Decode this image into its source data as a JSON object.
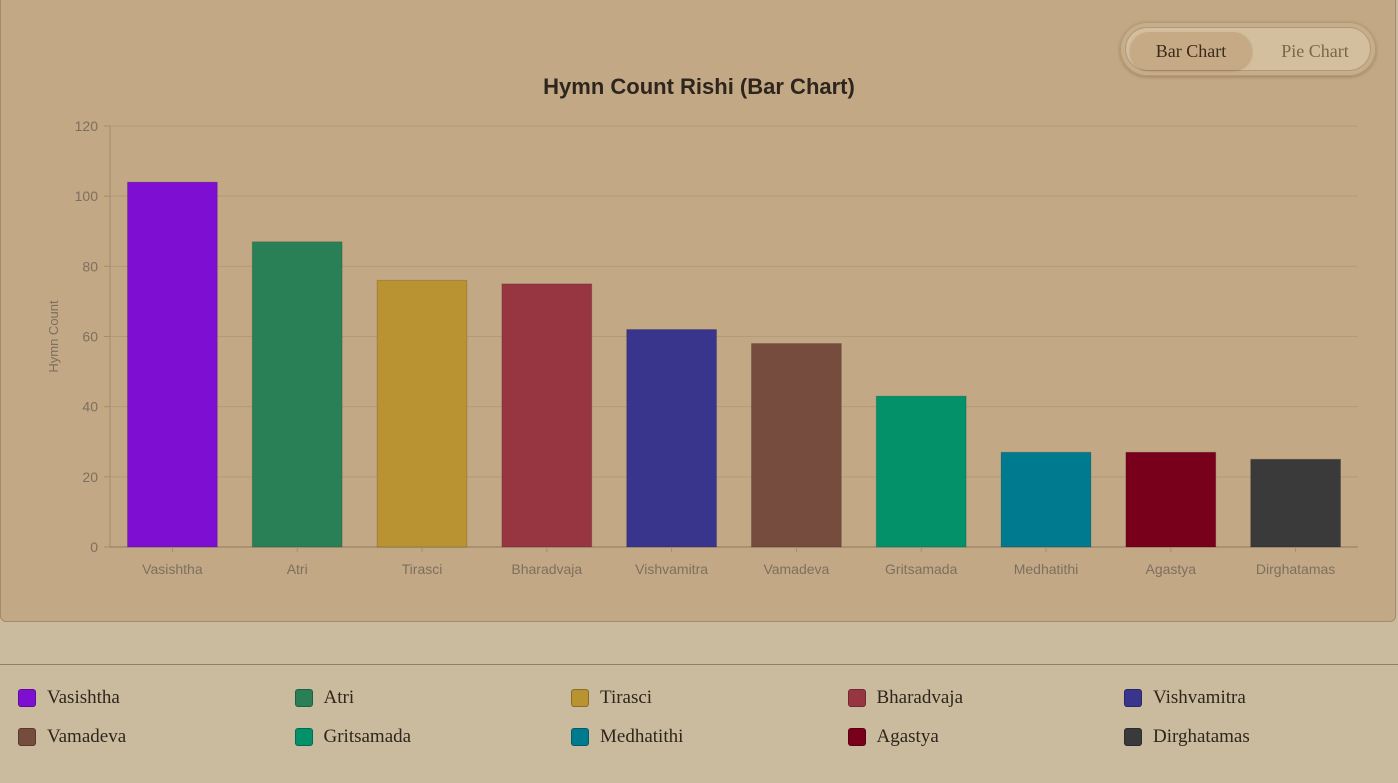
{
  "toggle": {
    "bar_label": "Bar Chart",
    "pie_label": "Pie Chart",
    "active": "bar"
  },
  "chart_data": {
    "type": "bar",
    "title": "Hymn Count Rishi (Bar Chart)",
    "xlabel": "",
    "ylabel": "Hymn Count",
    "ylim": [
      0,
      120
    ],
    "yticks": [
      0,
      20,
      40,
      60,
      80,
      100,
      120
    ],
    "grid": true,
    "legend": "bottom",
    "categories": [
      "Vasishtha",
      "Atri",
      "Tirasci",
      "Bharadvaja",
      "Vishvamitra",
      "Vamadeva",
      "Gritsamada",
      "Medhatithi",
      "Agastya",
      "Dirghatamas"
    ],
    "values": [
      104,
      87,
      76,
      75,
      62,
      58,
      43,
      27,
      27,
      25
    ],
    "colors": [
      "#7e0fd2",
      "#2a8056",
      "#b99232",
      "#973641",
      "#39348c",
      "#764c3e",
      "#03916a",
      "#007a8e",
      "#78001b",
      "#3a3a3a"
    ]
  }
}
